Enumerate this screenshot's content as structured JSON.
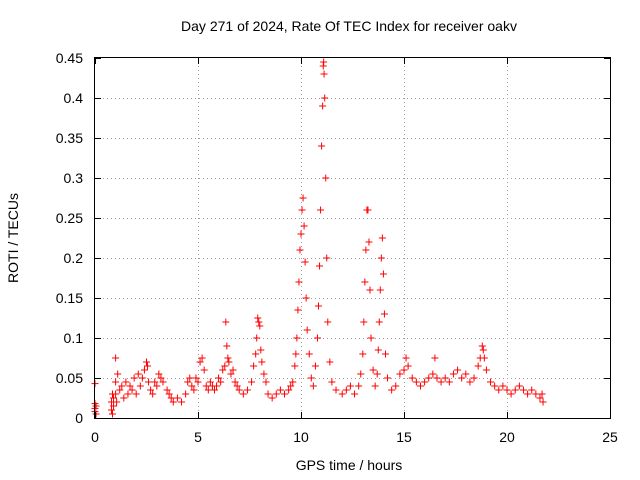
{
  "chart_data": {
    "type": "scatter",
    "title": "Day 271 of 2024, Rate Of TEC Index for receiver oakv",
    "xlabel": "GPS time / hours",
    "ylabel": "ROTI / TECUs",
    "xlim": [
      0,
      25
    ],
    "ylim": [
      0,
      0.45
    ],
    "xticks": [
      "0",
      "5",
      "10",
      "15",
      "20",
      "25"
    ],
    "yticks": [
      "0",
      "0.05",
      "0.1",
      "0.15",
      "0.2",
      "0.25",
      "0.3",
      "0.35",
      "0.4",
      "0.45"
    ],
    "grid": true,
    "marker": "+",
    "color": "#ff0000",
    "series": [
      {
        "name": "ROTI",
        "points": [
          [
            0.0,
            0.043
          ],
          [
            0.0,
            0.018
          ],
          [
            0.0,
            0.012
          ],
          [
            0.0,
            0.008
          ],
          [
            0.05,
            0.015
          ],
          [
            0.05,
            0.005
          ],
          [
            0.8,
            0.02
          ],
          [
            0.8,
            0.01
          ],
          [
            0.85,
            0.03
          ],
          [
            0.85,
            0.005
          ],
          [
            0.9,
            0.015
          ],
          [
            0.9,
            0.025
          ],
          [
            1.0,
            0.075
          ],
          [
            1.0,
            0.045
          ],
          [
            1.0,
            0.03
          ],
          [
            1.05,
            0.02
          ],
          [
            1.1,
            0.055
          ],
          [
            1.2,
            0.035
          ],
          [
            1.3,
            0.04
          ],
          [
            1.4,
            0.025
          ],
          [
            1.5,
            0.045
          ],
          [
            1.6,
            0.03
          ],
          [
            1.7,
            0.04
          ],
          [
            1.8,
            0.035
          ],
          [
            1.9,
            0.05
          ],
          [
            2.0,
            0.03
          ],
          [
            2.1,
            0.055
          ],
          [
            2.2,
            0.04
          ],
          [
            2.3,
            0.05
          ],
          [
            2.4,
            0.06
          ],
          [
            2.5,
            0.07
          ],
          [
            2.55,
            0.065
          ],
          [
            2.6,
            0.045
          ],
          [
            2.7,
            0.035
          ],
          [
            2.8,
            0.03
          ],
          [
            2.9,
            0.045
          ],
          [
            3.0,
            0.04
          ],
          [
            3.1,
            0.055
          ],
          [
            3.2,
            0.05
          ],
          [
            3.3,
            0.045
          ],
          [
            3.5,
            0.035
          ],
          [
            3.6,
            0.03
          ],
          [
            3.7,
            0.025
          ],
          [
            3.8,
            0.02
          ],
          [
            4.0,
            0.025
          ],
          [
            4.2,
            0.02
          ],
          [
            4.4,
            0.03
          ],
          [
            4.5,
            0.045
          ],
          [
            4.6,
            0.05
          ],
          [
            4.7,
            0.04
          ],
          [
            4.8,
            0.035
          ],
          [
            4.9,
            0.05
          ],
          [
            5.0,
            0.045
          ],
          [
            5.1,
            0.07
          ],
          [
            5.2,
            0.075
          ],
          [
            5.3,
            0.06
          ],
          [
            5.4,
            0.04
          ],
          [
            5.5,
            0.035
          ],
          [
            5.6,
            0.045
          ],
          [
            5.7,
            0.04
          ],
          [
            5.8,
            0.035
          ],
          [
            5.9,
            0.04
          ],
          [
            6.0,
            0.05
          ],
          [
            6.1,
            0.045
          ],
          [
            6.2,
            0.06
          ],
          [
            6.3,
            0.065
          ],
          [
            6.35,
            0.12
          ],
          [
            6.4,
            0.09
          ],
          [
            6.45,
            0.075
          ],
          [
            6.5,
            0.07
          ],
          [
            6.6,
            0.055
          ],
          [
            6.7,
            0.06
          ],
          [
            6.8,
            0.045
          ],
          [
            6.9,
            0.04
          ],
          [
            7.0,
            0.035
          ],
          [
            7.2,
            0.03
          ],
          [
            7.4,
            0.035
          ],
          [
            7.6,
            0.045
          ],
          [
            7.7,
            0.065
          ],
          [
            7.8,
            0.08
          ],
          [
            7.85,
            0.1
          ],
          [
            7.9,
            0.125
          ],
          [
            7.95,
            0.12
          ],
          [
            8.0,
            0.115
          ],
          [
            8.05,
            0.085
          ],
          [
            8.1,
            0.07
          ],
          [
            8.2,
            0.055
          ],
          [
            8.3,
            0.045
          ],
          [
            8.4,
            0.03
          ],
          [
            8.6,
            0.025
          ],
          [
            8.8,
            0.03
          ],
          [
            9.0,
            0.035
          ],
          [
            9.2,
            0.03
          ],
          [
            9.4,
            0.035
          ],
          [
            9.5,
            0.04
          ],
          [
            9.6,
            0.045
          ],
          [
            9.7,
            0.065
          ],
          [
            9.75,
            0.08
          ],
          [
            9.8,
            0.1
          ],
          [
            9.85,
            0.135
          ],
          [
            9.9,
            0.17
          ],
          [
            9.95,
            0.21
          ],
          [
            10.0,
            0.23
          ],
          [
            10.05,
            0.26
          ],
          [
            10.1,
            0.275
          ],
          [
            10.15,
            0.24
          ],
          [
            10.2,
            0.195
          ],
          [
            10.25,
            0.15
          ],
          [
            10.3,
            0.11
          ],
          [
            10.4,
            0.08
          ],
          [
            10.5,
            0.05
          ],
          [
            10.6,
            0.04
          ],
          [
            10.7,
            0.065
          ],
          [
            10.8,
            0.1
          ],
          [
            10.85,
            0.14
          ],
          [
            10.9,
            0.19
          ],
          [
            10.95,
            0.26
          ],
          [
            11.0,
            0.34
          ],
          [
            11.05,
            0.39
          ],
          [
            11.08,
            0.44
          ],
          [
            11.1,
            0.445
          ],
          [
            11.12,
            0.43
          ],
          [
            11.15,
            0.4
          ],
          [
            11.2,
            0.3
          ],
          [
            11.25,
            0.2
          ],
          [
            11.3,
            0.12
          ],
          [
            11.4,
            0.07
          ],
          [
            11.5,
            0.045
          ],
          [
            11.7,
            0.035
          ],
          [
            12.0,
            0.03
          ],
          [
            12.2,
            0.035
          ],
          [
            12.4,
            0.04
          ],
          [
            12.6,
            0.03
          ],
          [
            12.8,
            0.04
          ],
          [
            12.9,
            0.055
          ],
          [
            13.0,
            0.08
          ],
          [
            13.05,
            0.12
          ],
          [
            13.1,
            0.17
          ],
          [
            13.15,
            0.21
          ],
          [
            13.2,
            0.26
          ],
          [
            13.25,
            0.26
          ],
          [
            13.3,
            0.22
          ],
          [
            13.35,
            0.16
          ],
          [
            13.4,
            0.1
          ],
          [
            13.5,
            0.06
          ],
          [
            13.6,
            0.04
          ],
          [
            13.7,
            0.055
          ],
          [
            13.75,
            0.085
          ],
          [
            13.8,
            0.12
          ],
          [
            13.85,
            0.16
          ],
          [
            13.9,
            0.2
          ],
          [
            13.95,
            0.225
          ],
          [
            14.0,
            0.18
          ],
          [
            14.05,
            0.13
          ],
          [
            14.1,
            0.08
          ],
          [
            14.2,
            0.05
          ],
          [
            14.4,
            0.035
          ],
          [
            14.6,
            0.04
          ],
          [
            14.8,
            0.055
          ],
          [
            15.0,
            0.06
          ],
          [
            15.1,
            0.075
          ],
          [
            15.2,
            0.065
          ],
          [
            15.4,
            0.05
          ],
          [
            15.6,
            0.045
          ],
          [
            15.8,
            0.04
          ],
          [
            16.0,
            0.045
          ],
          [
            16.2,
            0.05
          ],
          [
            16.4,
            0.055
          ],
          [
            16.5,
            0.075
          ],
          [
            16.6,
            0.05
          ],
          [
            16.8,
            0.045
          ],
          [
            17.0,
            0.05
          ],
          [
            17.2,
            0.045
          ],
          [
            17.4,
            0.055
          ],
          [
            17.6,
            0.06
          ],
          [
            17.8,
            0.05
          ],
          [
            18.0,
            0.055
          ],
          [
            18.2,
            0.045
          ],
          [
            18.4,
            0.05
          ],
          [
            18.6,
            0.065
          ],
          [
            18.7,
            0.075
          ],
          [
            18.8,
            0.09
          ],
          [
            18.85,
            0.085
          ],
          [
            18.9,
            0.075
          ],
          [
            19.0,
            0.06
          ],
          [
            19.2,
            0.045
          ],
          [
            19.4,
            0.04
          ],
          [
            19.6,
            0.035
          ],
          [
            19.8,
            0.04
          ],
          [
            20.0,
            0.035
          ],
          [
            20.2,
            0.03
          ],
          [
            20.4,
            0.035
          ],
          [
            20.6,
            0.04
          ],
          [
            20.8,
            0.035
          ],
          [
            21.0,
            0.03
          ],
          [
            21.2,
            0.035
          ],
          [
            21.4,
            0.03
          ],
          [
            21.6,
            0.025
          ],
          [
            21.7,
            0.03
          ],
          [
            21.75,
            0.02
          ]
        ]
      }
    ]
  }
}
